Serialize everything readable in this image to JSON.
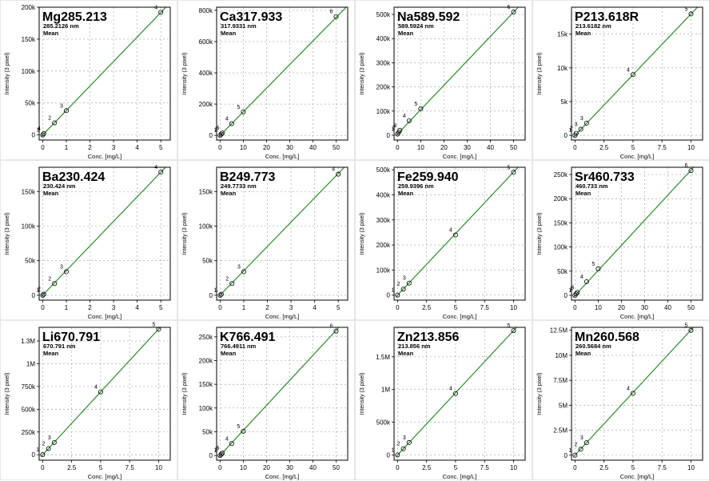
{
  "colors": {
    "line": "#2e8b2e",
    "point": "#000000",
    "grid": "#9a9a9a",
    "frame": "#000000",
    "text": "#000000"
  },
  "chart_data": [
    {
      "type": "line",
      "title": "Mg285.213",
      "subtitle": "285.2126 nm",
      "stat": "Mean",
      "xlabel": "Conc. [mg/L]",
      "ylabel": "Intensity (3 pixel)",
      "xlim": [
        -0.15,
        5.4
      ],
      "xticks": [
        0,
        1,
        2,
        3,
        4,
        5
      ],
      "xtick_labels": [
        "0",
        "1",
        "2",
        "3",
        "4",
        "5"
      ],
      "ylim": [
        -8000,
        200000
      ],
      "yticks": [
        0,
        50000,
        100000,
        150000,
        200000
      ],
      "ytick_labels": [
        "0",
        "50k",
        "100k",
        "150k",
        "200k"
      ],
      "points": [
        {
          "label": "1",
          "x": 0,
          "y": 0
        },
        {
          "label": "4",
          "x": 0.05,
          "y": 2000
        },
        {
          "label": "2",
          "x": 0.5,
          "y": 19000
        },
        {
          "label": "3",
          "x": 1.0,
          "y": 38000
        },
        {
          "label": "4",
          "x": 5.0,
          "y": 192000
        }
      ],
      "fit": [
        [
          -0.05,
          -2000
        ],
        [
          5.4,
          207000
        ]
      ]
    },
    {
      "type": "line",
      "title": "Ca317.933",
      "subtitle": "317.9331 nm",
      "stat": "Mean",
      "xlabel": "Conc. [mg/L]",
      "ylabel": "Intensity (3 pixel)",
      "xlim": [
        -1.5,
        55
      ],
      "xticks": [
        0,
        10,
        20,
        30,
        40,
        50
      ],
      "xtick_labels": [
        "0",
        "10",
        "20",
        "30",
        "40",
        "50"
      ],
      "ylim": [
        -30000,
        820000
      ],
      "yticks": [
        0,
        200000,
        400000,
        600000,
        800000
      ],
      "ytick_labels": [
        "0",
        "200k",
        "400k",
        "600k",
        "800k"
      ],
      "points": [
        {
          "label": "1",
          "x": 0,
          "y": 0
        },
        {
          "label": "2",
          "x": 0.5,
          "y": 8000
        },
        {
          "label": "3",
          "x": 1,
          "y": 15000
        },
        {
          "label": "4",
          "x": 5,
          "y": 75000
        },
        {
          "label": "5",
          "x": 10,
          "y": 150000
        },
        {
          "label": "6",
          "x": 50,
          "y": 760000
        }
      ],
      "fit": [
        [
          -0.5,
          -8000
        ],
        [
          55,
          830000
        ]
      ]
    },
    {
      "type": "line",
      "title": "Na589.592",
      "subtitle": "589.5924 nm",
      "stat": "Mean",
      "xlabel": "Conc. [mg/L]",
      "ylabel": "Intensity (3 pixel)",
      "xlim": [
        -1.5,
        55
      ],
      "xticks": [
        0,
        10,
        20,
        30,
        40,
        50
      ],
      "xtick_labels": [
        "0",
        "10",
        "20",
        "30",
        "40",
        "50"
      ],
      "ylim": [
        -20000,
        530000
      ],
      "yticks": [
        0,
        100000,
        200000,
        300000,
        400000,
        500000
      ],
      "ytick_labels": [
        "0",
        "100k",
        "200k",
        "300k",
        "400k",
        "500k"
      ],
      "points": [
        {
          "label": "1",
          "x": 0,
          "y": 5000
        },
        {
          "label": "2",
          "x": 0.5,
          "y": 12000
        },
        {
          "label": "3",
          "x": 1,
          "y": 20000
        },
        {
          "label": "4",
          "x": 5,
          "y": 60000
        },
        {
          "label": "5",
          "x": 10,
          "y": 110000
        },
        {
          "label": "6",
          "x": 50,
          "y": 510000
        }
      ],
      "fit": [
        [
          -0.5,
          0
        ],
        [
          55,
          560000
        ]
      ]
    },
    {
      "type": "line",
      "title": "P213.618R",
      "subtitle": "213.6182 nm",
      "stat": "Mean",
      "xlabel": "Conc. [mg/L]",
      "ylabel": "Intensity (3 pixel)",
      "xlim": [
        -0.3,
        11
      ],
      "xticks": [
        0,
        2.5,
        5,
        7.5,
        10
      ],
      "xtick_labels": [
        "0",
        "2.5",
        "5",
        "7.5",
        "10"
      ],
      "ylim": [
        -700,
        19000
      ],
      "yticks": [
        0,
        5000,
        10000,
        15000
      ],
      "ytick_labels": [
        "0",
        "5k",
        "10k",
        "15k"
      ],
      "points": [
        {
          "label": "1",
          "x": 0,
          "y": 0
        },
        {
          "label": "2",
          "x": 0.1,
          "y": 300
        },
        {
          "label": "3",
          "x": 0.5,
          "y": 900
        },
        {
          "label": "3",
          "x": 1,
          "y": 1800
        },
        {
          "label": "4",
          "x": 5,
          "y": 9000
        },
        {
          "label": "5",
          "x": 10,
          "y": 18000
        }
      ],
      "fit": [
        [
          -0.1,
          -200
        ],
        [
          11,
          19800
        ]
      ]
    },
    {
      "type": "line",
      "title": "Ba230.424",
      "subtitle": "230.424 nm",
      "stat": "Mean",
      "xlabel": "Conc. [mg/L]",
      "ylabel": "Intensity (3 pixel)",
      "xlim": [
        -0.15,
        5.4
      ],
      "xticks": [
        0,
        1,
        2,
        3,
        4,
        5
      ],
      "xtick_labels": [
        "0",
        "1",
        "2",
        "3",
        "4",
        "5"
      ],
      "ylim": [
        -7000,
        185000
      ],
      "yticks": [
        0,
        50000,
        100000,
        150000
      ],
      "ytick_labels": [
        "0",
        "50k",
        "100k",
        "150k"
      ],
      "points": [
        {
          "label": "1",
          "x": 0,
          "y": 0
        },
        {
          "label": "2",
          "x": 0.05,
          "y": 1500
        },
        {
          "label": "2",
          "x": 0.5,
          "y": 17000
        },
        {
          "label": "3",
          "x": 1,
          "y": 34000
        },
        {
          "label": "4",
          "x": 5,
          "y": 178000
        }
      ],
      "fit": [
        [
          -0.05,
          -1500
        ],
        [
          5.4,
          192000
        ]
      ]
    },
    {
      "type": "line",
      "title": "B249.773",
      "subtitle": "249.7733 nm",
      "stat": "Mean",
      "xlabel": "Conc. [mg/L]",
      "ylabel": "Intensity (3 pixel)",
      "xlim": [
        -0.15,
        5.4
      ],
      "xticks": [
        0,
        1,
        2,
        3,
        4,
        5
      ],
      "xtick_labels": [
        "0",
        "1",
        "2",
        "3",
        "4",
        "5"
      ],
      "ylim": [
        -7000,
        185000
      ],
      "yticks": [
        0,
        50000,
        100000,
        150000
      ],
      "ytick_labels": [
        "0",
        "50k",
        "100k",
        "150k"
      ],
      "points": [
        {
          "label": "1",
          "x": 0,
          "y": 0
        },
        {
          "label": "1",
          "x": 0.05,
          "y": 1500
        },
        {
          "label": "2",
          "x": 0.5,
          "y": 17000
        },
        {
          "label": "3",
          "x": 1,
          "y": 34000
        },
        {
          "label": "4",
          "x": 5,
          "y": 175000
        }
      ],
      "fit": [
        [
          -0.05,
          -1500
        ],
        [
          5.4,
          190000
        ]
      ]
    },
    {
      "type": "line",
      "title": "Fe259.940",
      "subtitle": "259.9396 nm",
      "stat": "Mean",
      "xlabel": "Conc. [mg/L]",
      "ylabel": "Intensity (3 pixel)",
      "xlim": [
        -0.3,
        11
      ],
      "xticks": [
        0,
        2.5,
        5,
        7.5,
        10
      ],
      "xtick_labels": [
        "0",
        "2.5",
        "5",
        "7.5",
        "10"
      ],
      "ylim": [
        -20000,
        510000
      ],
      "yticks": [
        0,
        100000,
        200000,
        300000,
        400000,
        500000
      ],
      "ytick_labels": [
        "0",
        "100k",
        "200k",
        "300k",
        "400k",
        "500k"
      ],
      "points": [
        {
          "label": "1",
          "x": 0,
          "y": 0
        },
        {
          "label": "2",
          "x": 0.5,
          "y": 24000
        },
        {
          "label": "3",
          "x": 1,
          "y": 48000
        },
        {
          "label": "4",
          "x": 5,
          "y": 240000
        },
        {
          "label": "5",
          "x": 10,
          "y": 490000
        }
      ],
      "fit": [
        [
          -0.1,
          -5000
        ],
        [
          11,
          540000
        ]
      ]
    },
    {
      "type": "line",
      "title": "Sr460.733",
      "subtitle": "460.733 nm",
      "stat": "Mean",
      "xlabel": "Conc. [mg/L]",
      "ylabel": "Intensity (3 pixel)",
      "xlim": [
        -1.5,
        55
      ],
      "xticks": [
        0,
        10,
        20,
        30,
        40,
        50
      ],
      "xtick_labels": [
        "0",
        "10",
        "20",
        "30",
        "40",
        "50"
      ],
      "ylim": [
        -10000,
        265000
      ],
      "yticks": [
        0,
        50000,
        100000,
        150000,
        200000,
        250000
      ],
      "ytick_labels": [
        "0",
        "50k",
        "100k",
        "150k",
        "200k",
        "250k"
      ],
      "points": [
        {
          "label": "1",
          "x": 0,
          "y": 0
        },
        {
          "label": "2",
          "x": 0.5,
          "y": 3000
        },
        {
          "label": "3",
          "x": 1,
          "y": 6000
        },
        {
          "label": "4",
          "x": 5,
          "y": 28000
        },
        {
          "label": "5",
          "x": 10,
          "y": 55000
        },
        {
          "label": "6",
          "x": 50,
          "y": 258000
        }
      ],
      "fit": [
        [
          -0.5,
          -3000
        ],
        [
          55,
          285000
        ]
      ]
    },
    {
      "type": "line",
      "title": "Li670.791",
      "subtitle": "670.791 nm",
      "stat": "Mean",
      "xlabel": "Conc. [mg/L]",
      "ylabel": "Intensity (3 pixel)",
      "xlim": [
        -0.3,
        11
      ],
      "xticks": [
        0,
        2.5,
        5,
        7.5,
        10
      ],
      "xtick_labels": [
        "0",
        "2.5",
        "5",
        "7.5",
        "10"
      ],
      "ylim": [
        -60000,
        1400000
      ],
      "yticks": [
        0,
        250000,
        500000,
        750000,
        1000000,
        1250000
      ],
      "ytick_labels": [
        "0",
        "250k",
        "500k",
        "750k",
        "1M",
        "1.3M"
      ],
      "points": [
        {
          "label": "1",
          "x": 0,
          "y": 0
        },
        {
          "label": "2",
          "x": 0.5,
          "y": 68000
        },
        {
          "label": "3",
          "x": 1,
          "y": 135000
        },
        {
          "label": "4",
          "x": 5,
          "y": 690000
        },
        {
          "label": "5",
          "x": 10,
          "y": 1380000
        }
      ],
      "fit": [
        [
          -0.1,
          -15000
        ],
        [
          11,
          1520000
        ]
      ]
    },
    {
      "type": "line",
      "title": "K766.491",
      "subtitle": "766.4911 nm",
      "stat": "Mean",
      "xlabel": "Conc. [mg/L]",
      "ylabel": "Intensity (3 pixel)",
      "xlim": [
        -1.5,
        55
      ],
      "xticks": [
        0,
        10,
        20,
        30,
        40,
        50
      ],
      "xtick_labels": [
        "0",
        "10",
        "20",
        "30",
        "40",
        "50"
      ],
      "ylim": [
        -10000,
        270000
      ],
      "yticks": [
        0,
        50000,
        100000,
        150000,
        200000,
        250000
      ],
      "ytick_labels": [
        "0",
        "50k",
        "100k",
        "150k",
        "200k",
        "250k"
      ],
      "points": [
        {
          "label": "1",
          "x": 0,
          "y": 0
        },
        {
          "label": "2",
          "x": 0.5,
          "y": 2500
        },
        {
          "label": "3",
          "x": 1,
          "y": 5000
        },
        {
          "label": "4",
          "x": 5,
          "y": 25000
        },
        {
          "label": "5",
          "x": 10,
          "y": 51000
        },
        {
          "label": "6",
          "x": 50,
          "y": 262000
        }
      ],
      "fit": [
        [
          -0.5,
          -2500
        ],
        [
          55,
          290000
        ]
      ]
    },
    {
      "type": "line",
      "title": "Zn213.856",
      "subtitle": "213.856 nm",
      "stat": "Mean",
      "xlabel": "Conc. [mg/L]",
      "ylabel": "Intensity (3 pixel)",
      "xlim": [
        -0.3,
        11
      ],
      "xticks": [
        0,
        2.5,
        5,
        7.5,
        10
      ],
      "xtick_labels": [
        "0",
        "2.5",
        "5",
        "7.5",
        "10"
      ],
      "ylim": [
        -80000,
        1950000
      ],
      "yticks": [
        0,
        500000,
        1000000,
        1500000
      ],
      "ytick_labels": [
        "0",
        "500k",
        "1M",
        "1.5M"
      ],
      "points": [
        {
          "label": "1",
          "x": 0,
          "y": 0
        },
        {
          "label": "2",
          "x": 0.5,
          "y": 95000
        },
        {
          "label": "3",
          "x": 1,
          "y": 190000
        },
        {
          "label": "4",
          "x": 5,
          "y": 940000
        },
        {
          "label": "5",
          "x": 10,
          "y": 1900000
        }
      ],
      "fit": [
        [
          -0.1,
          -20000
        ],
        [
          11,
          2090000
        ]
      ]
    },
    {
      "type": "line",
      "title": "Mn260.568",
      "subtitle": "260.5684 nm",
      "stat": "Mean",
      "xlabel": "Conc. [mg/L]",
      "ylabel": "Intensity (3 pixel)",
      "xlim": [
        -0.3,
        11
      ],
      "xticks": [
        0,
        2.5,
        5,
        7.5,
        10
      ],
      "xtick_labels": [
        "0",
        "2.5",
        "5",
        "7.5",
        "10"
      ],
      "ylim": [
        -500000,
        12800000
      ],
      "yticks": [
        0,
        2500000,
        5000000,
        7500000,
        10000000,
        12500000
      ],
      "ytick_labels": [
        "0",
        "2.5M",
        "5M",
        "7.5M",
        "10M",
        "12.5M"
      ],
      "points": [
        {
          "label": "1",
          "x": 0,
          "y": 0
        },
        {
          "label": "2",
          "x": 0.5,
          "y": 600000
        },
        {
          "label": "3",
          "x": 1,
          "y": 1250000
        },
        {
          "label": "4",
          "x": 5,
          "y": 6200000
        },
        {
          "label": "5",
          "x": 10,
          "y": 12500000
        }
      ],
      "fit": [
        [
          -0.1,
          -120000
        ],
        [
          11,
          13800000
        ]
      ]
    }
  ]
}
